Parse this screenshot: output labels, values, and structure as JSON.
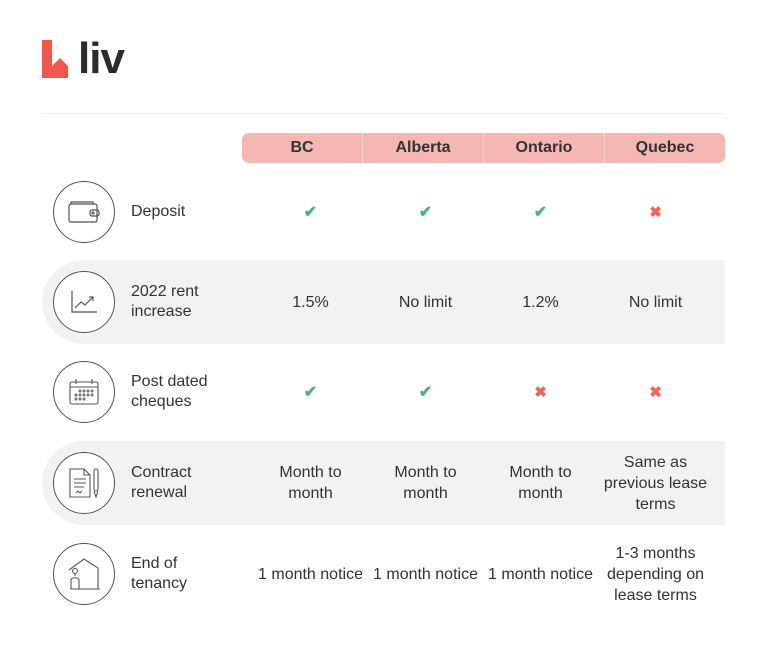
{
  "brand": {
    "name": "liv",
    "accent": "#f5564a"
  },
  "colors": {
    "header_bg": "#f4b7b1",
    "check": "#4cb27a",
    "cross": "#f0655a",
    "row_alt": "#f2f2f2"
  },
  "columns": [
    "BC",
    "Alberta",
    "Ontario",
    "Quebec"
  ],
  "rows": [
    {
      "icon": "wallet-icon",
      "label": "Deposit",
      "values": [
        {
          "type": "check"
        },
        {
          "type": "check"
        },
        {
          "type": "check"
        },
        {
          "type": "cross"
        }
      ]
    },
    {
      "icon": "trend-chart-icon",
      "label": "2022 rent increase",
      "values": [
        {
          "type": "text",
          "text": "1.5%"
        },
        {
          "type": "text",
          "text": "No limit"
        },
        {
          "type": "text",
          "text": "1.2%"
        },
        {
          "type": "text",
          "text": "No limit"
        }
      ]
    },
    {
      "icon": "calendar-icon",
      "label": "Post dated cheques",
      "values": [
        {
          "type": "check"
        },
        {
          "type": "check"
        },
        {
          "type": "cross"
        },
        {
          "type": "cross"
        }
      ]
    },
    {
      "icon": "contract-pen-icon",
      "label": "Contract renewal",
      "values": [
        {
          "type": "text",
          "text": "Month to month"
        },
        {
          "type": "text",
          "text": "Month to month"
        },
        {
          "type": "text",
          "text": "Month to month"
        },
        {
          "type": "text",
          "text": "Same as previous lease terms"
        }
      ]
    },
    {
      "icon": "house-person-icon",
      "label": "End of tenancy",
      "values": [
        {
          "type": "text",
          "text": "1 month notice"
        },
        {
          "type": "text",
          "text": "1 month notice"
        },
        {
          "type": "text",
          "text": "1 month notice"
        },
        {
          "type": "text",
          "text": "1-3 months depending on lease terms"
        }
      ]
    }
  ]
}
